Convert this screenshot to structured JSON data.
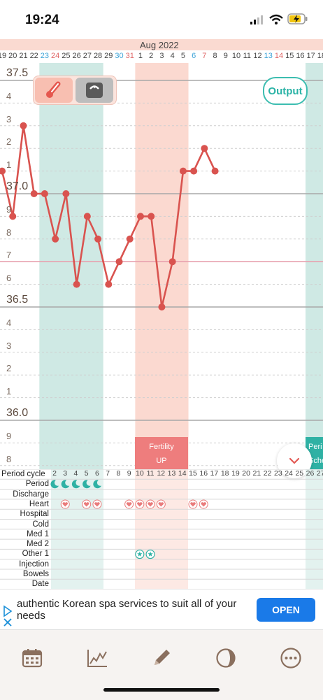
{
  "status_bar": {
    "time": "19:24"
  },
  "header": {
    "month": "Aug 2022",
    "today_marker": "3"
  },
  "days": [
    "19",
    "20",
    "21",
    "22",
    "23",
    "24",
    "25",
    "26",
    "27",
    "28",
    "29",
    "30",
    "31",
    "1",
    "2",
    "3",
    "4",
    "5",
    "6",
    "7",
    "8",
    "9",
    "10",
    "11",
    "12",
    "13",
    "14",
    "15",
    "16",
    "17",
    "18"
  ],
  "y_axis_labels": [
    {
      "text": "37.5",
      "major": true
    },
    {
      "text": "4",
      "major": false
    },
    {
      "text": "3",
      "major": false
    },
    {
      "text": "2",
      "major": false
    },
    {
      "text": "1",
      "major": false
    },
    {
      "text": "37.0",
      "major": true
    },
    {
      "text": "9",
      "major": false
    },
    {
      "text": "8",
      "major": false
    },
    {
      "text": "7",
      "major": false
    },
    {
      "text": "6",
      "major": false
    },
    {
      "text": "36.5",
      "major": true
    },
    {
      "text": "4",
      "major": false
    },
    {
      "text": "3",
      "major": false
    },
    {
      "text": "2",
      "major": false
    },
    {
      "text": "1",
      "major": false
    },
    {
      "text": "36.0",
      "major": true
    },
    {
      "text": "9",
      "major": false
    },
    {
      "text": "8",
      "major": false
    }
  ],
  "toolbar": {
    "output_label": "Output"
  },
  "fertility_badge": {
    "line1": "Fertility",
    "line2": "UP"
  },
  "period_schedule_badge": {
    "line1": "Peri",
    "line2": "Sche"
  },
  "record_rows": {
    "labels": [
      "Period cycle",
      "Period",
      "Discharge",
      "Heart",
      "Hospital",
      "Cold",
      "Med 1",
      "Med 2",
      "Other 1",
      "Injection",
      "Bowels",
      "Date"
    ],
    "cycle_days": [
      "2",
      "3",
      "4",
      "5",
      "6",
      "7",
      "8",
      "9",
      "10",
      "11",
      "12",
      "13",
      "14",
      "15",
      "16",
      "17",
      "18",
      "19",
      "20",
      "21",
      "22",
      "23",
      "24",
      "25",
      "26",
      "27"
    ]
  },
  "ad": {
    "text": "authentic Korean spa services to suit all of your needs",
    "button": "OPEN"
  },
  "chart_data": {
    "type": "line",
    "title": "",
    "xlabel": "",
    "ylabel": "",
    "ylim": [
      35.8,
      37.55
    ],
    "x": [
      "Jul 19",
      "Jul 20",
      "Jul 21",
      "Jul 22",
      "Jul 23",
      "Jul 24",
      "Jul 25",
      "Jul 26",
      "Jul 27",
      "Jul 28",
      "Jul 29",
      "Jul 30",
      "Jul 31",
      "Aug 1",
      "Aug 2",
      "Aug 3",
      "Aug 4",
      "Aug 5",
      "Aug 6",
      "Aug 7",
      "Aug 8"
    ],
    "series": [
      {
        "values": [
          37.1,
          36.9,
          37.3,
          37.0,
          37.0,
          36.8,
          37.0,
          36.6,
          36.9,
          36.8,
          36.6,
          36.7,
          36.8,
          36.9,
          36.9,
          36.5,
          36.7,
          37.1,
          37.1,
          37.2,
          37.1
        ]
      }
    ],
    "reference_lines": [
      37.5,
      37.0,
      36.7,
      36.5,
      36.0
    ],
    "highlight_ranges": [
      {
        "label": "period",
        "from": "Jul 23",
        "to": "Jul 28",
        "color": "#cfe9e4"
      },
      {
        "label": "fertility",
        "from": "Aug 1",
        "to": "Aug 5",
        "color": "#fbd9d0"
      }
    ],
    "line_color": "#d9534f",
    "grid": true
  },
  "colors": {
    "accent": "#3cbdb0",
    "line": "#d9534f",
    "period": "#2fb1a4",
    "fertility": "#ee7d7d"
  }
}
